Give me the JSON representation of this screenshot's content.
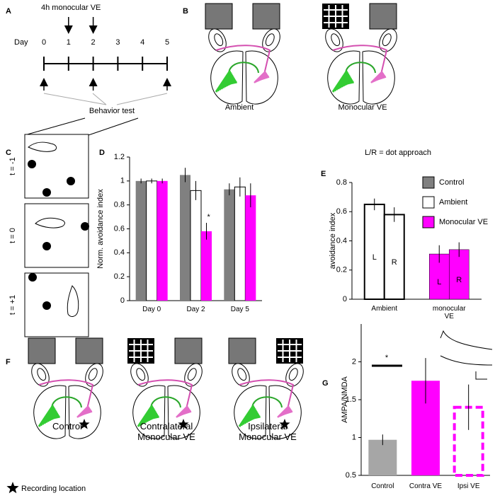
{
  "panel_labels": [
    "A",
    "B",
    "C",
    "D",
    "E",
    "F",
    "G"
  ],
  "panel_a": {
    "title": "4h monocular VE",
    "day_label": "Day",
    "days": [
      0,
      1,
      2,
      3,
      4,
      5
    ],
    "test_label": "Behavior test"
  },
  "panel_b": {
    "labels": [
      "Ambient",
      "Monocular VE"
    ]
  },
  "panel_c": {
    "labels": [
      "t = -1",
      "t = 0",
      "t = +1"
    ]
  },
  "panel_f": {
    "labels": [
      "Control",
      "Contralateral Monocular VE",
      "Ipsilateral Monocular VE"
    ],
    "legend": "Recording location"
  },
  "chart_data": [
    {
      "type": "bar",
      "ylabel": "Norm. avoidance index",
      "categories": [
        "Day 0",
        "Day 2",
        "Day 5"
      ],
      "series": [
        {
          "name": "Control",
          "color": "#808080",
          "values": [
            1.0,
            1.05,
            0.93
          ],
          "errors": [
            0.02,
            0.06,
            0.05
          ]
        },
        {
          "name": "Ambient",
          "color": "#ffffff",
          "values": [
            1.0,
            0.92,
            0.95
          ],
          "errors": [
            0.02,
            0.08,
            0.08
          ]
        },
        {
          "name": "Monocular VE",
          "color": "#ff00ff",
          "values": [
            1.0,
            0.58,
            0.88
          ],
          "errors": [
            0.02,
            0.07,
            0.1
          ]
        }
      ],
      "annotation": "*",
      "ylim": [
        0,
        1.2
      ],
      "yticks": [
        0,
        0.2,
        0.4,
        0.6,
        0.8,
        1,
        1.2
      ]
    },
    {
      "type": "bar",
      "title": "L/R = dot approach",
      "ylabel": "avoidance index",
      "categories": [
        "Ambient",
        "monocular VE"
      ],
      "bar_colors": [
        "#ffffff",
        "#ff00ff"
      ],
      "series": [
        {
          "name": "L",
          "values": [
            0.65,
            0.31
          ],
          "errors": [
            0.04,
            0.06
          ]
        },
        {
          "name": "R",
          "values": [
            0.58,
            0.34
          ],
          "errors": [
            0.05,
            0.05
          ]
        }
      ],
      "ylim": [
        0,
        0.8
      ],
      "yticks": [
        0,
        0.2,
        0.4,
        0.6,
        0.8
      ]
    },
    {
      "type": "bar",
      "ylabel": "AMPA/NMDA",
      "categories": [
        "Control",
        "Contra VE",
        "Ipsi VE"
      ],
      "colors": [
        "#a6a6a6",
        "#ff00ff",
        "#ff00ff"
      ],
      "outline_only": [
        false,
        false,
        true
      ],
      "values": [
        0.97,
        1.75,
        1.4
      ],
      "errors": [
        0.07,
        0.3,
        0.3
      ],
      "annotation": "*",
      "ylim": [
        0.5,
        2.5
      ],
      "yticks": [
        0.5,
        1,
        1.5,
        2
      ]
    }
  ]
}
